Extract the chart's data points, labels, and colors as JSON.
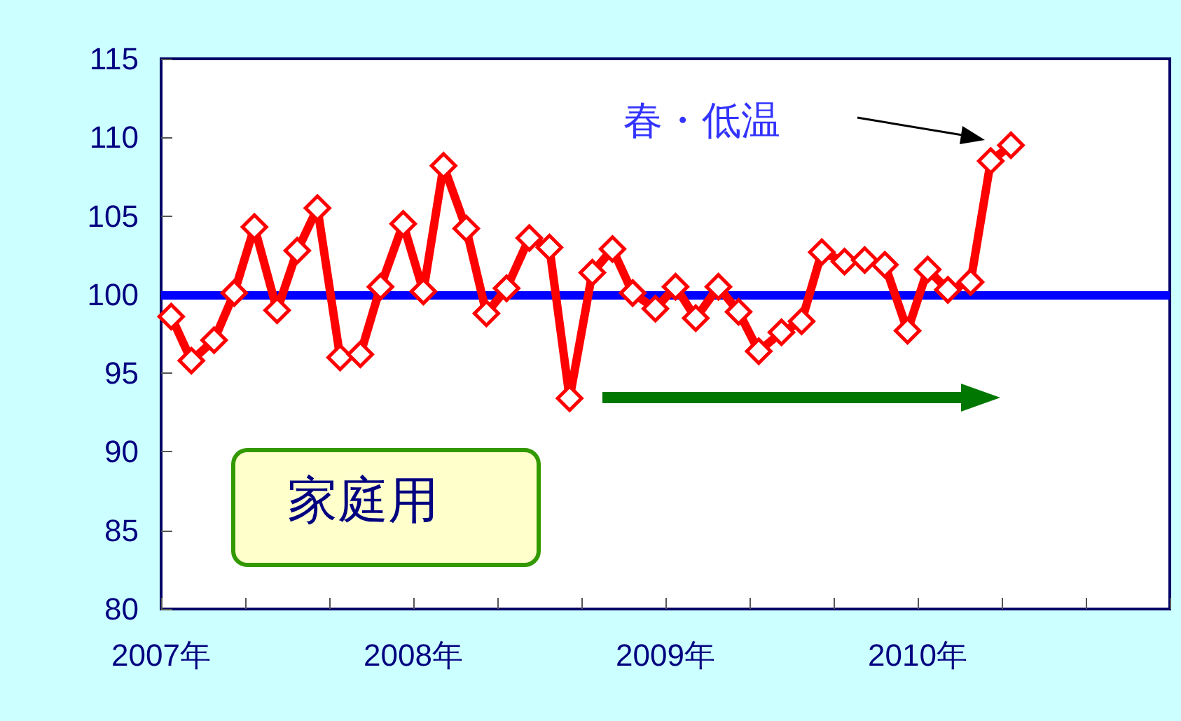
{
  "chart_data": {
    "type": "line",
    "marker": "diamond",
    "line_style": "solid",
    "x": [
      2007.04,
      2007.12,
      2007.21,
      2007.29,
      2007.37,
      2007.46,
      2007.54,
      2007.62,
      2007.71,
      2007.79,
      2007.87,
      2007.96,
      2008.04,
      2008.12,
      2008.21,
      2008.29,
      2008.37,
      2008.46,
      2008.54,
      2008.62,
      2008.71,
      2008.79,
      2008.87,
      2008.96,
      2009.04,
      2009.12,
      2009.21,
      2009.29,
      2009.37,
      2009.46,
      2009.54,
      2009.62,
      2009.71,
      2009.79,
      2009.87,
      2009.96,
      2010.04,
      2010.12,
      2010.21,
      2010.29,
      2010.37
    ],
    "series": [
      {
        "color": "#ff0000",
        "values": [
          98.6,
          95.8,
          97.1,
          100.1,
          104.3,
          99.0,
          102.8,
          105.5,
          96.0,
          96.2,
          100.5,
          104.5,
          100.2,
          108.2,
          104.2,
          98.8,
          100.4,
          103.6,
          103.0,
          93.4,
          101.4,
          102.9,
          100.1,
          99.1,
          100.5,
          98.5,
          100.5,
          98.9,
          96.4,
          97.6,
          98.3,
          102.7,
          102.1,
          102.2,
          101.9,
          97.7,
          101.6,
          100.3,
          100.8,
          108.5,
          109.5
        ]
      }
    ],
    "xlim": [
      2007,
      2011
    ],
    "xticks": [
      {
        "value": 2007,
        "label": "2007年"
      },
      {
        "value": 2007.333,
        "label": null
      },
      {
        "value": 2007.667,
        "label": null
      },
      {
        "value": 2008,
        "label": "2008年"
      },
      {
        "value": 2008.333,
        "label": null
      },
      {
        "value": 2008.667,
        "label": null
      },
      {
        "value": 2009,
        "label": "2009年"
      },
      {
        "value": 2009.333,
        "label": null
      },
      {
        "value": 2009.667,
        "label": null
      },
      {
        "value": 2010,
        "label": "2010年"
      },
      {
        "value": 2010.333,
        "label": null
      },
      {
        "value": 2010.667,
        "label": null
      },
      {
        "value": 2011,
        "label": null
      }
    ],
    "ylim": [
      80,
      115
    ],
    "yticks": [
      80,
      85,
      90,
      95,
      100,
      105,
      110,
      115
    ],
    "ref_lines": [
      {
        "axis": "y",
        "value": 100,
        "color": "#0000ff"
      }
    ],
    "annotations": [
      "春・低温",
      "家庭用"
    ],
    "grid": false
  }
}
